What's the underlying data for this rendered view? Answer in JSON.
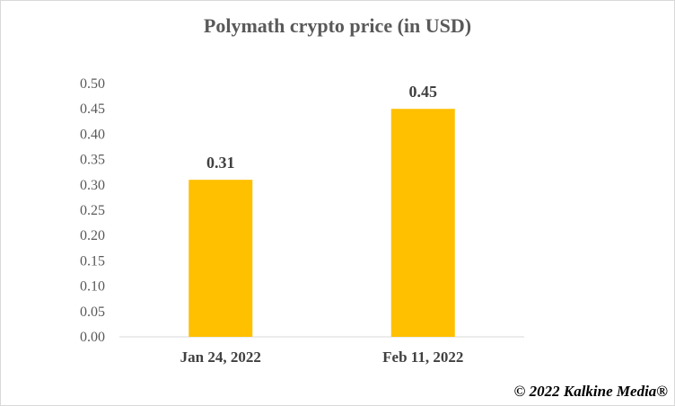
{
  "chart_data": {
    "type": "bar",
    "title": "Polymath crypto price (in USD)",
    "xlabel": "",
    "ylabel": "",
    "categories": [
      "Jan 24, 2022",
      "Feb 11, 2022"
    ],
    "values": [
      0.31,
      0.45
    ],
    "data_labels": [
      "0.31",
      "0.45"
    ],
    "ylim": [
      0,
      0.5
    ],
    "y_ticks": [
      "0.00",
      "0.05",
      "0.10",
      "0.15",
      "0.20",
      "0.25",
      "0.30",
      "0.35",
      "0.40",
      "0.45",
      "0.50"
    ],
    "grid": false,
    "legend": "none",
    "bar_color": "#FFC000"
  },
  "copyright": "© 2022 Kalkine Media®"
}
